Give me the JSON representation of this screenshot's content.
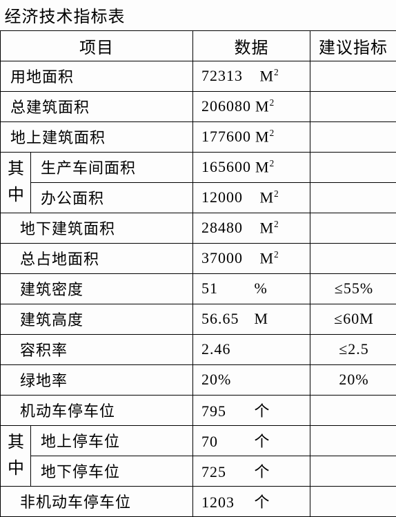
{
  "title": "经济技术指标表",
  "headers": {
    "item": "项目",
    "data": "数据",
    "suggest": "建议指标"
  },
  "group_label": "其中",
  "colors": {
    "border": "#000000",
    "bg": "#fdfdfd",
    "text": "#000000"
  },
  "font": {
    "family": "SimSun",
    "base_size": 22,
    "header_size": 24
  },
  "rows": [
    {
      "label": "用地面积",
      "value": "72313",
      "unit": "M²",
      "suggest": ""
    },
    {
      "label": "总建筑面积",
      "value": "206080",
      "unit": "M²",
      "suggest": ""
    },
    {
      "label": "地上建筑面积",
      "value": "177600",
      "unit": "M²",
      "suggest": ""
    },
    {
      "label": "生产车间面积",
      "value": "165600",
      "unit": "M²",
      "suggest": ""
    },
    {
      "label": "办公面积",
      "value": "12000",
      "unit": "M²",
      "suggest": ""
    },
    {
      "label": "地下建筑面积",
      "value": "28480",
      "unit": "M²",
      "suggest": ""
    },
    {
      "label": "总占地面积",
      "value": "37000",
      "unit": "M²",
      "suggest": ""
    },
    {
      "label": "建筑密度",
      "value": "51",
      "unit": "%",
      "suggest": "≤55%"
    },
    {
      "label": "建筑高度",
      "value": "56.65",
      "unit": "M",
      "suggest": "≤60M"
    },
    {
      "label": "容积率",
      "value": "2.46",
      "unit": "",
      "suggest": "≤2.5"
    },
    {
      "label": "绿地率",
      "value": "20%",
      "unit": "",
      "suggest": "20%"
    },
    {
      "label": "机动车停车位",
      "value": "795",
      "unit": "个",
      "suggest": ""
    },
    {
      "label": "地上停车位",
      "value": "70",
      "unit": "个",
      "suggest": ""
    },
    {
      "label": "地下停车位",
      "value": "725",
      "unit": "个",
      "suggest": ""
    },
    {
      "label": "非机动车停车位",
      "value": "1203",
      "unit": "个",
      "suggest": ""
    }
  ]
}
